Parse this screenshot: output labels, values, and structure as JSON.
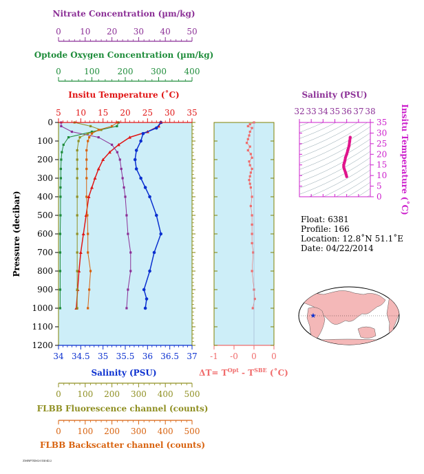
{
  "colors": {
    "nitrate": "#8b2f96",
    "oxygen": "#1e8c3a",
    "temperature": "#e01515",
    "salinity": "#0a2fcf",
    "fluorescence": "#8f8f22",
    "backscatter": "#d8620e",
    "delta_t": "#f06b6b",
    "ts_axis": "#cc1fcc",
    "panel_bg": "#cdeef8"
  },
  "labels": {
    "nitrate_title": "Nitrate Concentration (µm/kg)",
    "oxygen_title": "Optode Oxygen Concentration (µm/kg)",
    "temperature_title": "Insitu Temperature (˚C)",
    "salinity_title": "Salinity (PSU)",
    "fluorescence_title": "FLBB Fluorescence channel (counts)",
    "backscatter_title": "FLBB Backscatter channel (counts)",
    "pressure_title": "Pressure (decibar)",
    "delta_t_title": "ΔT= T",
    "delta_t_sup1": "Opt",
    "delta_t_mid": " - T",
    "delta_t_sup2": "SBE",
    "delta_t_unit": " (˚C)",
    "ts_salinity_title": "Salinity (PSU)",
    "ts_temperature_title": "Insitu Temperature (˚C)",
    "footer_code": "ZMRPT4M20140422"
  },
  "info": {
    "float": "Float:  6381",
    "profile": "Profile:  166",
    "location": "Location:  12.8˚N  51.1˚E",
    "date": "Date:  04/22/2014"
  },
  "chart_data": [
    {
      "type": "line",
      "title": "Profile panel",
      "y_axis": {
        "label": "Pressure (decibar)",
        "range": [
          1200,
          0
        ],
        "ticks": [
          0,
          100,
          200,
          300,
          400,
          500,
          600,
          700,
          800,
          900,
          1000,
          1100,
          1200
        ]
      },
      "axes": {
        "nitrate": {
          "label": "Nitrate Concentration (µm/kg)",
          "range": [
            0,
            50
          ],
          "ticks": [
            0,
            10,
            20,
            30,
            40,
            50
          ]
        },
        "oxygen": {
          "label": "Optode Oxygen Concentration (µm/kg)",
          "range": [
            0,
            400
          ],
          "ticks": [
            0,
            100,
            200,
            300,
            400
          ]
        },
        "temperature": {
          "label": "Insitu Temperature (˚C)",
          "range": [
            5,
            35
          ],
          "ticks": [
            5,
            10,
            15,
            20,
            25,
            30,
            35
          ]
        },
        "salinity": {
          "label": "Salinity (PSU)",
          "range": [
            34,
            37
          ],
          "ticks": [
            34,
            34.5,
            35,
            35.5,
            36,
            36.5,
            37
          ],
          "tick_labels": [
            "34",
            "34.5",
            "35",
            "35.5",
            "36",
            "36.5",
            "37"
          ]
        },
        "fluorescence": {
          "label": "FLBB Fluorescence channel (counts)",
          "range": [
            0,
            500
          ],
          "ticks": [
            0,
            100,
            200,
            300,
            400,
            500
          ]
        },
        "backscatter": {
          "label": "FLBB Backscatter channel (counts)",
          "range": [
            0,
            500
          ],
          "ticks": [
            0,
            100,
            200,
            300,
            400,
            500
          ]
        }
      },
      "series": [
        {
          "name": "Insitu Temperature",
          "axis": "temperature",
          "x": [
            28.0,
            27.5,
            25.0,
            21.0,
            18.5,
            16.5,
            15.0,
            14.0,
            13.2,
            12.5,
            11.8,
            11.2,
            10.6,
            10.0,
            9.6,
            9.3,
            9.0
          ],
          "pressure": [
            0,
            20,
            50,
            80,
            120,
            160,
            200,
            250,
            300,
            350,
            400,
            500,
            600,
            700,
            800,
            900,
            1000
          ]
        },
        {
          "name": "Salinity",
          "axis": "salinity",
          "x": [
            36.3,
            36.2,
            35.9,
            35.85,
            35.75,
            35.72,
            35.75,
            35.85,
            35.95,
            36.05,
            36.2,
            36.3,
            36.15,
            36.05,
            35.92,
            35.98,
            35.95
          ],
          "pressure": [
            0,
            30,
            60,
            100,
            150,
            200,
            250,
            300,
            350,
            400,
            500,
            600,
            700,
            800,
            900,
            950,
            1000
          ]
        },
        {
          "name": "Nitrate",
          "axis": "nitrate",
          "x": [
            1,
            1,
            5,
            15,
            20,
            22,
            23,
            23.5,
            24,
            24.5,
            25,
            25.5,
            26,
            27,
            27,
            26,
            25.5
          ],
          "pressure": [
            0,
            20,
            50,
            80,
            120,
            160,
            200,
            250,
            300,
            350,
            400,
            500,
            600,
            700,
            800,
            900,
            1000
          ]
        },
        {
          "name": "Oxygen",
          "axis": "oxygen",
          "x": [
            180,
            175,
            100,
            30,
            15,
            10,
            8,
            7,
            7,
            6,
            6,
            6,
            5,
            5,
            5,
            5,
            5
          ],
          "pressure": [
            0,
            20,
            50,
            80,
            120,
            160,
            200,
            250,
            300,
            350,
            400,
            500,
            600,
            700,
            800,
            900,
            1000
          ]
        },
        {
          "name": "Fluorescence",
          "axis": "fluorescence",
          "x": [
            60,
            120,
            160,
            110,
            80,
            75,
            70,
            70,
            70,
            70,
            70,
            70,
            70,
            70,
            70,
            70,
            70
          ],
          "pressure": [
            0,
            20,
            40,
            60,
            80,
            100,
            150,
            200,
            250,
            300,
            400,
            500,
            600,
            700,
            800,
            900,
            1000
          ]
        },
        {
          "name": "Backscatter",
          "axis": "backscatter",
          "x": [
            220,
            200,
            150,
            125,
            115,
            110,
            105,
            105,
            105,
            105,
            105,
            108,
            110,
            110,
            120,
            115,
            110
          ],
          "pressure": [
            0,
            20,
            40,
            60,
            80,
            100,
            150,
            200,
            250,
            300,
            400,
            500,
            600,
            700,
            800,
            900,
            1000
          ]
        }
      ]
    },
    {
      "type": "scatter",
      "title": "ΔT panel",
      "x_axis": {
        "label": "ΔT= TOpt - TSBE (˚C)",
        "range": [
          -1,
          0
        ],
        "ticks": [
          -1,
          -0.5,
          0,
          0.5
        ],
        "tick_labels": [
          "-1",
          "-0",
          "0",
          "0"
        ]
      },
      "y_axis": {
        "range": [
          1200,
          0
        ]
      },
      "series": [
        {
          "name": "ΔT",
          "x": [
            0.0,
            -0.1,
            -0.15,
            -0.05,
            -0.1,
            -0.12,
            -0.15,
            -0.18,
            -0.1,
            -0.15,
            -0.08,
            -0.05,
            -0.12,
            -0.1,
            -0.05,
            -0.08,
            -0.1,
            -0.12,
            -0.1,
            -0.08,
            -0.05,
            -0.08,
            -0.05,
            -0.05,
            -0.05,
            -0.05,
            -0.02,
            -0.05,
            0.0,
            0.02,
            -0.03
          ],
          "pressure": [
            0,
            10,
            20,
            30,
            50,
            70,
            90,
            110,
            130,
            150,
            170,
            190,
            210,
            230,
            250,
            270,
            290,
            310,
            330,
            350,
            400,
            450,
            500,
            550,
            600,
            650,
            700,
            800,
            900,
            950,
            1000
          ]
        }
      ]
    },
    {
      "type": "scatter",
      "title": "T-S diagram",
      "x_axis": {
        "label": "Salinity (PSU)",
        "range": [
          32,
          38
        ],
        "ticks": [
          32,
          33,
          34,
          35,
          36,
          37,
          38
        ]
      },
      "y_axis": {
        "label": "Insitu Temperature (˚C)",
        "range": [
          0,
          35
        ],
        "ticks": [
          0,
          5,
          10,
          15,
          20,
          25,
          30,
          35
        ]
      },
      "series": [
        {
          "name": "T-S",
          "x": [
            36.3,
            36.25,
            36.2,
            36.1,
            36.0,
            35.9,
            35.85,
            35.8,
            35.75,
            35.75,
            35.8,
            35.9,
            35.95,
            36.0
          ],
          "y": [
            28.0,
            26.0,
            24.0,
            22.0,
            20.0,
            18.5,
            17.0,
            16.0,
            15.0,
            14.0,
            13.0,
            11.5,
            10.5,
            9.5
          ]
        }
      ]
    }
  ]
}
